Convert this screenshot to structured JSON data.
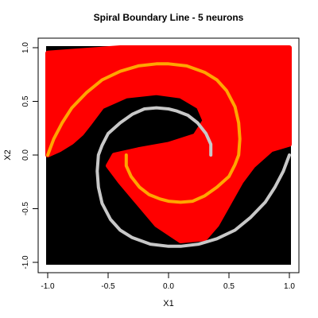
{
  "chart_data": {
    "type": "scatter",
    "title": "Spiral Boundary Line - 5 neurons",
    "xlabel": "X1",
    "ylabel": "X2",
    "xlim": [
      -1.0,
      1.0
    ],
    "ylim": [
      -1.0,
      1.0
    ],
    "x_ticks": [
      -1.0,
      -0.5,
      0.0,
      0.5,
      1.0
    ],
    "x_tick_labels": [
      "-1.0",
      "-0.5",
      "0.0",
      "0.5",
      "1.0"
    ],
    "y_ticks": [
      -1.0,
      -0.5,
      0.0,
      0.5,
      1.0
    ],
    "y_tick_labels": [
      "-1.0",
      "-0.5",
      "0.0",
      "0.5",
      "1.0"
    ],
    "grid": false,
    "legend": "none",
    "colors": {
      "class_red": "#ff0000",
      "class_black": "#000000",
      "spiral_orange": "#ffa500",
      "spiral_gray": "#c8c8c8"
    },
    "regions": {
      "red": [
        [
          [
            -1.0,
            0.95
          ],
          [
            -0.4,
            1.0
          ],
          [
            1.0,
            1.0
          ],
          [
            1.0,
            0.1
          ],
          [
            0.85,
            0.05
          ],
          [
            0.7,
            -0.1
          ],
          [
            0.6,
            -0.25
          ],
          [
            0.5,
            -0.45
          ],
          [
            0.4,
            -0.65
          ],
          [
            0.3,
            -0.78
          ],
          [
            0.1,
            -0.8
          ],
          [
            -0.1,
            -0.65
          ],
          [
            -0.25,
            -0.45
          ],
          [
            -0.4,
            -0.25
          ],
          [
            -0.5,
            -0.1
          ],
          [
            -0.45,
            0.0
          ],
          [
            -0.25,
            0.05
          ],
          [
            0.0,
            0.1
          ],
          [
            0.22,
            0.18
          ],
          [
            0.3,
            0.32
          ],
          [
            0.25,
            0.45
          ],
          [
            0.1,
            0.55
          ],
          [
            -0.1,
            0.58
          ],
          [
            -0.35,
            0.55
          ],
          [
            -0.55,
            0.45
          ],
          [
            -0.65,
            0.3
          ],
          [
            -0.72,
            0.2
          ],
          [
            -0.8,
            0.12
          ],
          [
            -0.9,
            0.05
          ],
          [
            -1.0,
            0.0
          ]
        ]
      ]
    },
    "series": [
      {
        "color": "#ffa500",
        "points": [
          [
            -0.35,
            0.0
          ],
          [
            -0.35,
            -0.1
          ],
          [
            -0.31,
            -0.2
          ],
          [
            -0.24,
            -0.3
          ],
          [
            -0.16,
            -0.37
          ],
          [
            -0.07,
            -0.41
          ],
          [
            0.0,
            -0.43
          ],
          [
            0.1,
            -0.44
          ],
          [
            0.2,
            -0.43
          ],
          [
            0.3,
            -0.38
          ],
          [
            0.4,
            -0.3
          ],
          [
            0.5,
            -0.2
          ],
          [
            0.55,
            -0.09
          ],
          [
            0.58,
            0.0
          ],
          [
            0.59,
            0.15
          ],
          [
            0.58,
            0.3
          ],
          [
            0.55,
            0.45
          ],
          [
            0.48,
            0.6
          ],
          [
            0.4,
            0.7
          ],
          [
            0.3,
            0.77
          ],
          [
            0.15,
            0.83
          ],
          [
            0.0,
            0.85
          ],
          [
            -0.1,
            0.85
          ],
          [
            -0.25,
            0.83
          ],
          [
            -0.4,
            0.78
          ],
          [
            -0.55,
            0.7
          ],
          [
            -0.68,
            0.58
          ],
          [
            -0.8,
            0.44
          ],
          [
            -0.88,
            0.3
          ],
          [
            -0.95,
            0.15
          ],
          [
            -1.0,
            0.0
          ]
        ]
      },
      {
        "color": "#c8c8c8",
        "points": [
          [
            0.35,
            0.0
          ],
          [
            0.35,
            0.1
          ],
          [
            0.31,
            0.2
          ],
          [
            0.24,
            0.3
          ],
          [
            0.16,
            0.37
          ],
          [
            0.07,
            0.41
          ],
          [
            0.0,
            0.43
          ],
          [
            -0.1,
            0.44
          ],
          [
            -0.2,
            0.43
          ],
          [
            -0.3,
            0.38
          ],
          [
            -0.4,
            0.3
          ],
          [
            -0.5,
            0.2
          ],
          [
            -0.55,
            0.09
          ],
          [
            -0.58,
            0.0
          ],
          [
            -0.59,
            -0.15
          ],
          [
            -0.58,
            -0.3
          ],
          [
            -0.55,
            -0.45
          ],
          [
            -0.48,
            -0.6
          ],
          [
            -0.4,
            -0.7
          ],
          [
            -0.3,
            -0.77
          ],
          [
            -0.15,
            -0.83
          ],
          [
            0.0,
            -0.85
          ],
          [
            0.1,
            -0.85
          ],
          [
            0.25,
            -0.83
          ],
          [
            0.4,
            -0.78
          ],
          [
            0.55,
            -0.7
          ],
          [
            0.68,
            -0.58
          ],
          [
            0.8,
            -0.44
          ],
          [
            0.88,
            -0.3
          ],
          [
            0.95,
            -0.15
          ],
          [
            1.0,
            0.0
          ]
        ]
      }
    ]
  }
}
